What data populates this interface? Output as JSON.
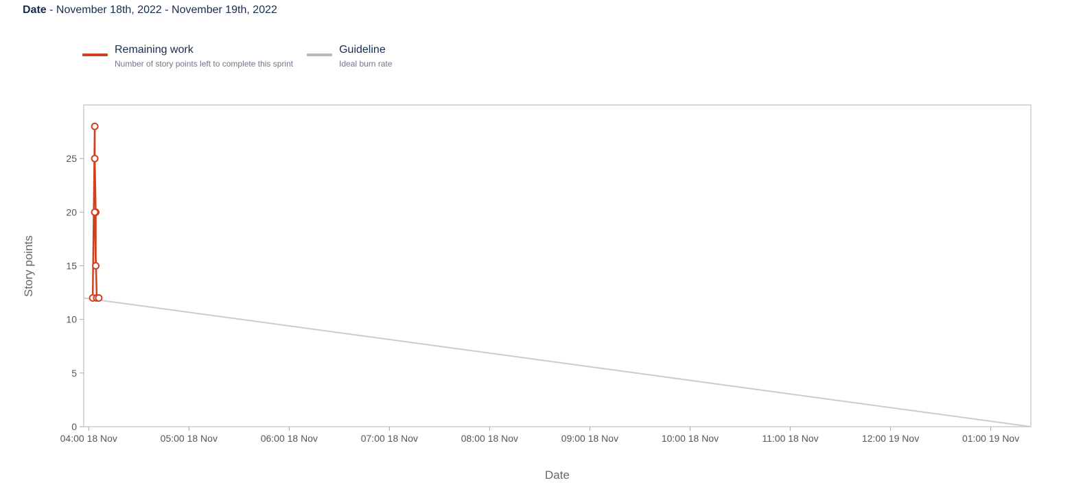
{
  "header": {
    "label": "Date",
    "range": "- November 18th, 2022 - November 19th, 2022"
  },
  "legend": [
    {
      "label": "Remaining work",
      "description": "Number of story points left to complete this sprint",
      "color": "#d04020"
    },
    {
      "label": "Guideline",
      "description": "Ideal burn rate",
      "color": "#b3bac5"
    }
  ],
  "chart_data": {
    "type": "line",
    "xlabel": "Date",
    "ylabel": "Story points",
    "x_ticks": [
      "04:00 18 Nov",
      "05:00 18 Nov",
      "06:00 18 Nov",
      "07:00 18 Nov",
      "08:00 18 Nov",
      "09:00 18 Nov",
      "10:00 18 Nov",
      "11:00 18 Nov",
      "12:00 19 Nov",
      "01:00 19 Nov"
    ],
    "y_ticks": [
      0,
      5,
      10,
      15,
      20,
      25
    ],
    "ylim": [
      0,
      30
    ],
    "xlim_hours": [
      -0.05,
      9.4
    ],
    "grid": false,
    "legend_position": "top-left",
    "series": [
      {
        "name": "Remaining work",
        "color": "#d04020",
        "x_hours": [
          0.04,
          0.06,
          0.06,
          0.07,
          0.07,
          0.06,
          0.08,
          0.1
        ],
        "values": [
          12,
          28,
          25,
          20,
          15,
          20,
          12,
          12
        ]
      },
      {
        "name": "Guideline",
        "color": "#cccccc",
        "x_hours": [
          -0.05,
          9.4
        ],
        "values": [
          12,
          0
        ]
      }
    ]
  }
}
